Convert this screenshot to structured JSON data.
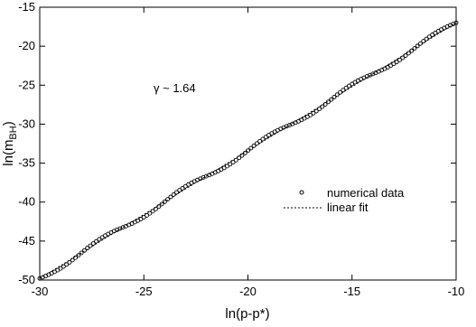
{
  "chart_data": {
    "type": "scatter",
    "title": "",
    "xlabel": "ln(p-p*)",
    "ylabel_main": "ln(m",
    "ylabel_sub": "BH",
    "ylabel_close": ")",
    "xlim": [
      -30,
      -10
    ],
    "ylim": [
      -50,
      -15
    ],
    "x_ticks": [
      -30,
      -25,
      -20,
      -15,
      -10
    ],
    "y_ticks": [
      -50,
      -45,
      -40,
      -35,
      -30,
      -25,
      -20,
      -15
    ],
    "x_tick_labels": [
      "-30",
      "-25",
      "-20",
      "-15",
      "-10"
    ],
    "y_tick_labels": [
      "-50",
      "-45",
      "-40",
      "-35",
      "-30",
      "-25",
      "-20",
      "-15"
    ],
    "annotation": "γ ~ 1.64",
    "legend_position": "center-right",
    "grid": false,
    "series": [
      {
        "name": "numerical data",
        "kind": "scatter",
        "marker": "open-circle",
        "x_range": [
          -30,
          -10
        ],
        "slope": 1.64,
        "intercept": -0.6,
        "points_per_unit": 7,
        "wobble_amplitude": 0.35,
        "wobble_period": 4
      },
      {
        "name": "linear fit",
        "kind": "line",
        "style": "dashed",
        "x_range": [
          -30,
          -10
        ],
        "slope": 1.64,
        "intercept": -0.6
      }
    ],
    "colors": {
      "axis": "#000000",
      "marker": "#000000",
      "background": "#ffffff"
    }
  }
}
